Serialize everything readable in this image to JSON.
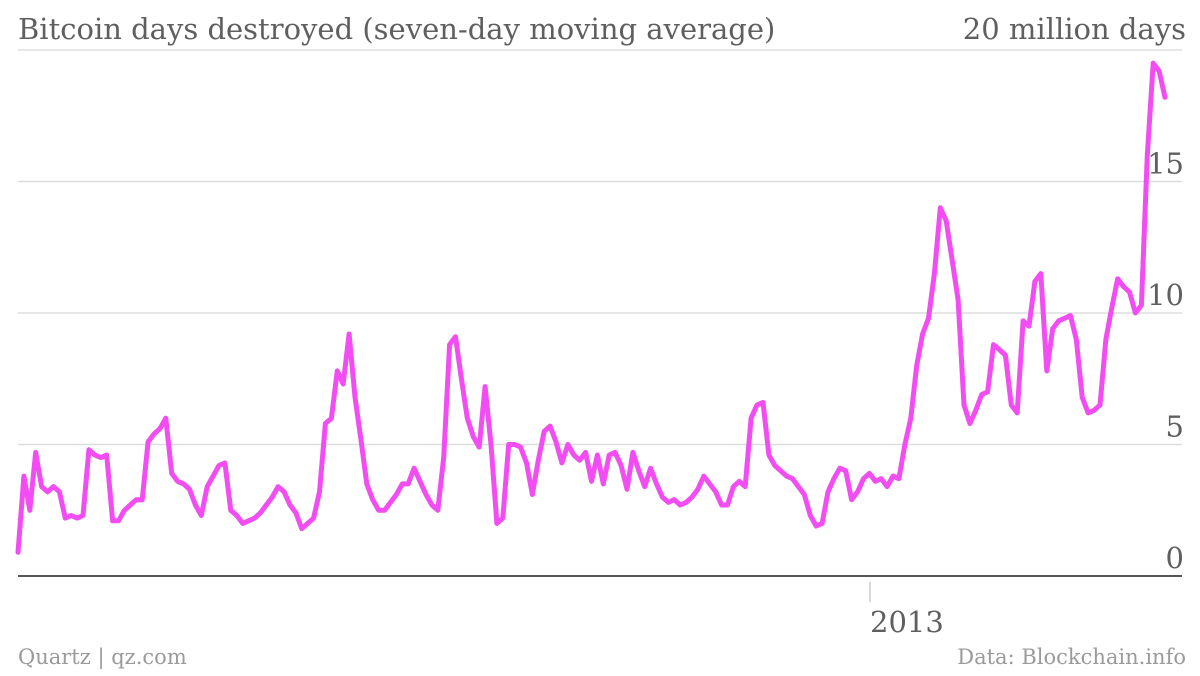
{
  "header": {
    "title": "Bitcoin days destroyed (seven-day moving average)",
    "unit_label": "20 million days"
  },
  "footer": {
    "credit": "Quartz | qz.com",
    "source": "Data: Blockchain.info"
  },
  "colors": {
    "series": "#f24df2",
    "grid": "#dddddd",
    "axis": "#555555",
    "text": "#5f5f5f",
    "footer": "#9a9a9a"
  },
  "chart_data": {
    "type": "line",
    "title": "Bitcoin days destroyed (seven-day moving average)",
    "xlabel": "",
    "ylabel": "",
    "ylim": [
      0,
      20
    ],
    "yticks": [
      "0",
      "5",
      "10",
      "15"
    ],
    "xticks": [
      "2013"
    ],
    "grid": true,
    "series": [
      {
        "values": [
          0.9,
          3.8,
          2.5,
          4.7,
          3.4,
          3.2,
          3.4,
          3.2,
          2.2,
          2.3,
          2.2,
          2.3,
          4.8,
          4.6,
          4.5,
          4.6,
          2.1,
          2.1,
          2.5,
          2.7,
          2.9,
          2.9,
          5.1,
          5.4,
          5.6,
          6.0,
          3.9,
          3.6,
          3.5,
          3.3,
          2.7,
          2.3,
          3.4,
          3.8,
          4.2,
          4.3,
          2.5,
          2.3,
          2.0,
          2.1,
          2.2,
          2.4,
          2.7,
          3.0,
          3.4,
          3.2,
          2.7,
          2.4,
          1.8,
          2.0,
          2.2,
          3.2,
          5.8,
          6.0,
          7.8,
          7.3,
          9.2,
          6.8,
          5.2,
          3.5,
          2.9,
          2.5,
          2.5,
          2.8,
          3.1,
          3.5,
          3.5,
          4.1,
          3.6,
          3.1,
          2.7,
          2.5,
          4.5,
          8.8,
          9.1,
          7.5,
          6.0,
          5.3,
          4.9,
          7.2,
          5.0,
          2.0,
          2.2,
          5.0,
          5.0,
          4.9,
          4.3,
          3.1,
          4.4,
          5.5,
          5.7,
          5.1,
          4.3,
          5.0,
          4.6,
          4.4,
          4.7,
          3.6,
          4.6,
          3.5,
          4.6,
          4.7,
          4.2,
          3.3,
          4.7,
          4.0,
          3.4,
          4.1,
          3.5,
          3.0,
          2.8,
          2.9,
          2.7,
          2.8,
          3.0,
          3.3,
          3.8,
          3.5,
          3.2,
          2.7,
          2.7,
          3.4,
          3.6,
          3.4,
          6.0,
          6.5,
          6.6,
          4.6,
          4.2,
          4.0,
          3.8,
          3.7,
          3.4,
          3.1,
          2.3,
          1.9,
          2.0,
          3.2,
          3.7,
          4.1,
          4.0,
          2.9,
          3.2,
          3.7,
          3.9,
          3.6,
          3.7,
          3.4,
          3.8,
          3.7,
          5.0,
          6.0,
          8.0,
          9.2,
          9.8,
          11.5,
          14.0,
          13.5,
          12.0,
          10.5,
          6.5,
          5.8,
          6.3,
          6.9,
          7.0,
          8.8,
          8.6,
          8.4,
          6.5,
          6.2,
          9.7,
          9.5,
          11.2,
          11.5,
          7.8,
          9.4,
          9.7,
          9.8,
          9.9,
          9.0,
          6.8,
          6.2,
          6.3,
          6.5,
          9.0,
          10.2,
          11.3,
          11.0,
          10.8,
          10.0,
          10.3,
          16.0,
          19.5,
          19.2,
          18.2
        ]
      }
    ]
  }
}
